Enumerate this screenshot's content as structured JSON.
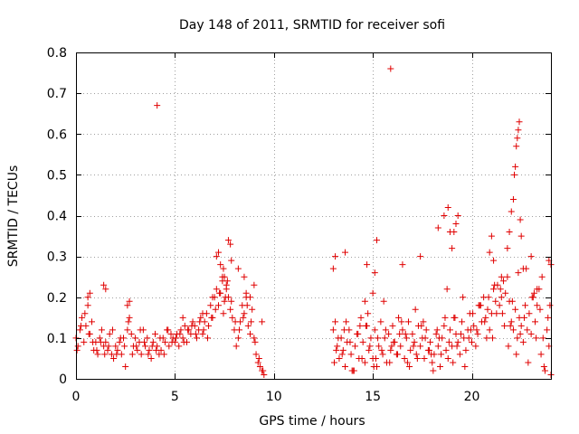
{
  "chart_data": {
    "type": "scatter",
    "title": "Day 148 of 2011, SRMTID for receiver sofi",
    "xlabel": "GPS time / hours",
    "ylabel": "SRMTID / TECUs",
    "xlim": [
      0,
      24
    ],
    "ylim": [
      0,
      0.8
    ],
    "xticks": [
      {
        "value": 0,
        "label": "0"
      },
      {
        "value": 5,
        "label": "5"
      },
      {
        "value": 10,
        "label": "10"
      },
      {
        "value": 15,
        "label": "15"
      },
      {
        "value": 20,
        "label": "20"
      }
    ],
    "yticks": [
      {
        "value": 0,
        "label": "0"
      },
      {
        "value": 0.1,
        "label": "0.1"
      },
      {
        "value": 0.2,
        "label": "0.2"
      },
      {
        "value": 0.3,
        "label": "0.3"
      },
      {
        "value": 0.4,
        "label": "0.4"
      },
      {
        "value": 0.5,
        "label": "0.5"
      },
      {
        "value": 0.6,
        "label": "0.6"
      },
      {
        "value": 0.7,
        "label": "0.7"
      },
      {
        "value": 0.8,
        "label": "0.8"
      }
    ],
    "grid": true,
    "marker": "+",
    "color": "#e00000",
    "series": [
      {
        "name": "SRMTID",
        "x": [
          0.0,
          0.1,
          0.2,
          0.3,
          0.4,
          0.5,
          0.6,
          0.7,
          0.8,
          0.9,
          1.0,
          1.1,
          1.2,
          1.3,
          1.4,
          1.5,
          1.6,
          1.7,
          1.8,
          1.9,
          2.0,
          2.1,
          2.2,
          2.3,
          2.4,
          2.5,
          2.6,
          2.7,
          2.8,
          2.9,
          3.0,
          3.1,
          3.2,
          3.3,
          3.4,
          3.5,
          3.6,
          3.7,
          3.8,
          3.9,
          4.0,
          4.1,
          4.2,
          4.3,
          4.4,
          4.5,
          4.6,
          4.7,
          4.8,
          4.9,
          5.0,
          5.1,
          5.2,
          5.3,
          5.4,
          5.5,
          5.6,
          5.7,
          5.8,
          5.9,
          6.0,
          6.1,
          6.2,
          6.3,
          6.4,
          6.5,
          6.6,
          6.7,
          6.8,
          6.9,
          7.0,
          7.1,
          7.2,
          7.3,
          7.4,
          7.5,
          7.6,
          7.7,
          7.8,
          7.9,
          8.0,
          8.1,
          8.2,
          8.3,
          8.4,
          8.5,
          8.6,
          8.7,
          8.8,
          8.9,
          9.0,
          9.1,
          9.2,
          9.3,
          9.4,
          9.5,
          0.05,
          0.25,
          0.45,
          0.65,
          0.85,
          1.05,
          1.25,
          1.45,
          1.65,
          1.85,
          2.05,
          2.25,
          2.45,
          2.65,
          2.85,
          3.05,
          3.25,
          3.45,
          3.65,
          3.85,
          4.05,
          4.25,
          4.45,
          4.65,
          4.85,
          5.05,
          5.25,
          5.45,
          5.65,
          5.85,
          6.05,
          6.25,
          6.45,
          6.65,
          6.85,
          7.05,
          7.25,
          7.45,
          7.65,
          7.85,
          8.05,
          8.25,
          8.45,
          8.65,
          8.85,
          9.05,
          9.25,
          9.45,
          0.6,
          0.7,
          1.4,
          1.5,
          2.6,
          2.7,
          4.1,
          5.4,
          6.4,
          6.9,
          7.1,
          7.2,
          7.3,
          7.4,
          7.45,
          7.5,
          7.55,
          7.6,
          7.7,
          7.8,
          7.85,
          8.2,
          8.5,
          8.6,
          8.8,
          9.0,
          9.4,
          13.0,
          13.1,
          13.2,
          13.3,
          13.4,
          13.5,
          13.6,
          13.7,
          13.8,
          13.9,
          14.0,
          14.1,
          14.2,
          14.3,
          14.4,
          14.5,
          14.6,
          14.7,
          14.8,
          14.9,
          15.0,
          15.1,
          15.2,
          15.3,
          15.4,
          15.5,
          15.6,
          15.7,
          15.8,
          15.9,
          16.0,
          16.1,
          16.2,
          16.3,
          16.4,
          16.5,
          16.6,
          16.7,
          16.8,
          16.9,
          17.0,
          17.1,
          17.2,
          17.3,
          17.4,
          17.5,
          17.6,
          17.7,
          17.8,
          17.9,
          18.0,
          18.1,
          18.2,
          18.3,
          18.4,
          18.5,
          18.6,
          18.7,
          18.8,
          18.9,
          19.0,
          19.1,
          19.2,
          19.3,
          19.4,
          19.5,
          19.6,
          19.7,
          19.8,
          19.9,
          20.0,
          20.1,
          20.2,
          20.3,
          20.4,
          20.5,
          20.6,
          20.7,
          20.8,
          20.9,
          21.0,
          21.1,
          21.2,
          21.3,
          21.4,
          21.5,
          21.6,
          21.7,
          21.8,
          21.9,
          22.0,
          22.1,
          22.2,
          22.3,
          22.4,
          22.5,
          22.6,
          22.7,
          22.8,
          22.9,
          23.0,
          23.1,
          23.2,
          23.3,
          23.4,
          23.5,
          23.6,
          23.7,
          23.8,
          23.9,
          24.0,
          13.05,
          13.25,
          13.45,
          13.65,
          13.85,
          14.05,
          14.25,
          14.45,
          14.65,
          14.85,
          15.05,
          15.25,
          15.45,
          15.65,
          15.85,
          16.05,
          16.25,
          16.45,
          16.65,
          16.85,
          17.05,
          17.25,
          17.45,
          17.65,
          17.85,
          18.05,
          18.25,
          18.45,
          18.65,
          18.85,
          19.05,
          19.25,
          19.45,
          19.65,
          19.85,
          20.05,
          20.25,
          20.45,
          20.65,
          20.85,
          21.05,
          21.25,
          21.45,
          21.65,
          21.85,
          22.05,
          22.25,
          22.45,
          22.65,
          22.85,
          23.05,
          23.25,
          23.45,
          23.65,
          23.85,
          13.15,
          13.55,
          13.95,
          14.35,
          14.75,
          15.15,
          15.55,
          15.95,
          16.35,
          16.75,
          17.15,
          17.55,
          17.95,
          18.35,
          18.75,
          19.15,
          19.55,
          19.95,
          20.35,
          20.75,
          21.15,
          21.55,
          21.95,
          22.35,
          22.75,
          23.15,
          23.55,
          23.95,
          13.0,
          13.1,
          13.6,
          14.6,
          14.7,
          15.0,
          15.1,
          15.2,
          15.9,
          16.5,
          17.4,
          18.3,
          18.6,
          18.8,
          18.9,
          19.0,
          19.1,
          19.2,
          19.3,
          20.9,
          21.0,
          21.1,
          21.5,
          21.8,
          21.9,
          22.0,
          22.1,
          22.15,
          22.2,
          22.25,
          22.3,
          22.35,
          22.4,
          22.45,
          22.5,
          22.6,
          23.0,
          23.3,
          23.9,
          24.0
        ],
        "y": [
          0.1,
          0.08,
          0.12,
          0.15,
          0.09,
          0.13,
          0.18,
          0.11,
          0.14,
          0.07,
          0.09,
          0.06,
          0.1,
          0.12,
          0.08,
          0.09,
          0.07,
          0.11,
          0.06,
          0.05,
          0.08,
          0.07,
          0.09,
          0.06,
          0.1,
          0.03,
          0.12,
          0.15,
          0.11,
          0.08,
          0.1,
          0.07,
          0.09,
          0.06,
          0.12,
          0.08,
          0.1,
          0.07,
          0.05,
          0.09,
          0.11,
          0.08,
          0.06,
          0.07,
          0.1,
          0.09,
          0.12,
          0.08,
          0.11,
          0.1,
          0.09,
          0.11,
          0.08,
          0.12,
          0.1,
          0.13,
          0.09,
          0.12,
          0.11,
          0.14,
          0.13,
          0.1,
          0.12,
          0.15,
          0.11,
          0.14,
          0.16,
          0.13,
          0.18,
          0.15,
          0.2,
          0.22,
          0.18,
          0.21,
          0.25,
          0.19,
          0.23,
          0.2,
          0.17,
          0.15,
          0.12,
          0.08,
          0.1,
          0.14,
          0.18,
          0.16,
          0.2,
          0.13,
          0.11,
          0.17,
          0.1,
          0.06,
          0.04,
          0.03,
          0.02,
          0.01,
          0.07,
          0.13,
          0.16,
          0.11,
          0.09,
          0.07,
          0.09,
          0.06,
          0.08,
          0.12,
          0.06,
          0.1,
          0.08,
          0.14,
          0.06,
          0.08,
          0.12,
          0.09,
          0.06,
          0.08,
          0.07,
          0.1,
          0.06,
          0.12,
          0.09,
          0.1,
          0.11,
          0.09,
          0.12,
          0.13,
          0.11,
          0.14,
          0.12,
          0.1,
          0.15,
          0.17,
          0.21,
          0.16,
          0.24,
          0.19,
          0.14,
          0.12,
          0.15,
          0.18,
          0.14,
          0.09,
          0.05,
          0.02,
          0.2,
          0.21,
          0.23,
          0.22,
          0.18,
          0.19,
          0.67,
          0.15,
          0.16,
          0.2,
          0.3,
          0.31,
          0.28,
          0.24,
          0.27,
          0.25,
          0.2,
          0.22,
          0.34,
          0.33,
          0.29,
          0.27,
          0.25,
          0.21,
          0.2,
          0.23,
          0.14,
          0.12,
          0.14,
          0.08,
          0.05,
          0.1,
          0.07,
          0.03,
          0.09,
          0.12,
          0.06,
          0.02,
          0.08,
          0.11,
          0.05,
          0.15,
          0.09,
          0.04,
          0.13,
          0.07,
          0.1,
          0.05,
          0.12,
          0.03,
          0.08,
          0.14,
          0.06,
          0.1,
          0.04,
          0.11,
          0.07,
          0.13,
          0.09,
          0.06,
          0.15,
          0.08,
          0.12,
          0.05,
          0.1,
          0.14,
          0.07,
          0.11,
          0.09,
          0.06,
          0.13,
          0.08,
          0.1,
          0.05,
          0.12,
          0.07,
          0.09,
          0.04,
          0.06,
          0.11,
          0.08,
          0.03,
          0.1,
          0.13,
          0.07,
          0.05,
          0.12,
          0.08,
          0.15,
          0.11,
          0.09,
          0.06,
          0.14,
          0.1,
          0.07,
          0.12,
          0.16,
          0.09,
          0.13,
          0.08,
          0.11,
          0.18,
          0.14,
          0.2,
          0.15,
          0.17,
          0.12,
          0.16,
          0.22,
          0.19,
          0.23,
          0.18,
          0.2,
          0.24,
          0.21,
          0.25,
          0.19,
          0.14,
          0.12,
          0.17,
          0.1,
          0.15,
          0.13,
          0.09,
          0.18,
          0.12,
          0.16,
          0.11,
          0.2,
          0.14,
          0.18,
          0.22,
          0.06,
          0.1,
          0.02,
          0.12,
          0.08,
          0.01,
          0.04,
          0.1,
          0.06,
          0.14,
          0.09,
          0.02,
          0.11,
          0.05,
          0.13,
          0.08,
          0.03,
          0.1,
          0.07,
          0.12,
          0.04,
          0.09,
          0.06,
          0.14,
          0.11,
          0.03,
          0.08,
          0.05,
          0.13,
          0.1,
          0.07,
          0.02,
          0.12,
          0.06,
          0.15,
          0.09,
          0.04,
          0.08,
          0.11,
          0.03,
          0.1,
          0.16,
          0.12,
          0.18,
          0.14,
          0.2,
          0.1,
          0.16,
          0.22,
          0.13,
          0.08,
          0.19,
          0.06,
          0.11,
          0.15,
          0.04,
          0.2,
          0.1,
          0.17,
          0.03,
          0.15,
          0.07,
          0.12,
          0.02,
          0.13,
          0.16,
          0.05,
          0.19,
          0.08,
          0.11,
          0.04,
          0.17,
          0.14,
          0.06,
          0.1,
          0.22,
          0.15,
          0.2,
          0.12,
          0.18,
          0.1,
          0.23,
          0.16,
          0.13,
          0.26,
          0.27,
          0.21,
          0.25,
          0.18,
          0.27,
          0.3,
          0.31,
          0.19,
          0.28,
          0.21,
          0.26,
          0.34,
          0.76,
          0.28,
          0.3,
          0.37,
          0.4,
          0.42,
          0.36,
          0.32,
          0.36,
          0.38,
          0.4,
          0.31,
          0.35,
          0.29,
          0.25,
          0.32,
          0.36,
          0.41,
          0.44,
          0.5,
          0.52,
          0.57,
          0.59,
          0.61,
          0.63,
          0.39,
          0.35,
          0.27,
          0.3,
          0.22,
          0.29,
          0.28
        ]
      }
    ]
  }
}
